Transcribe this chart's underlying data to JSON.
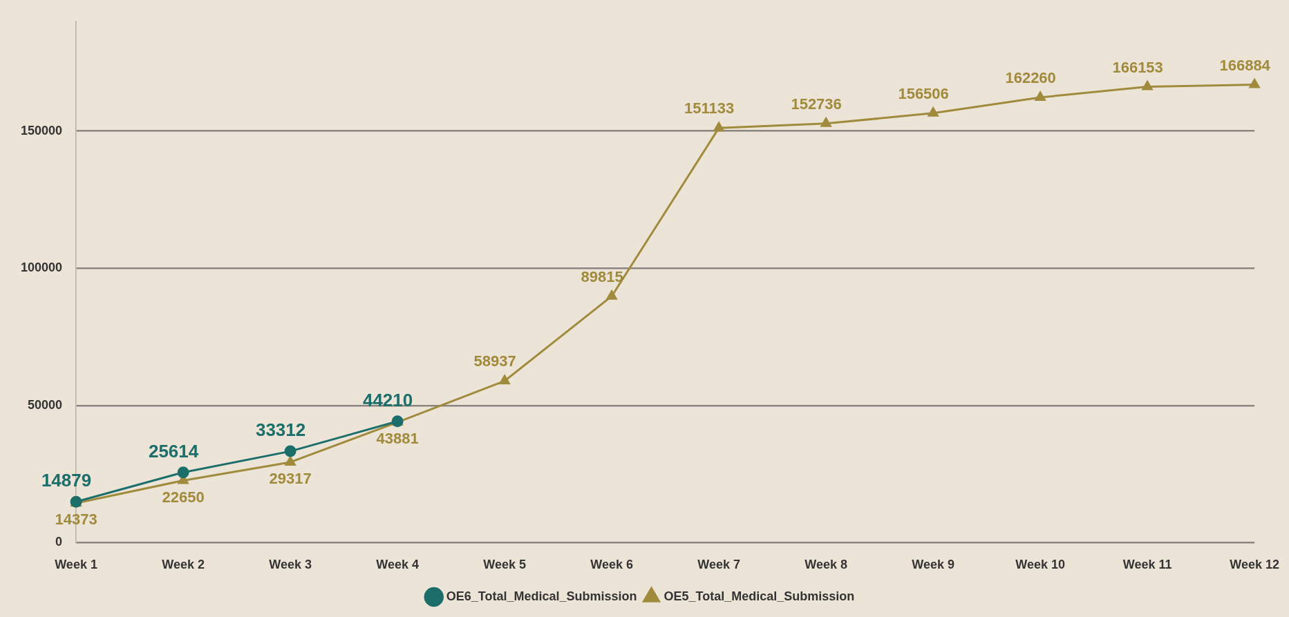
{
  "chart_data": {
    "type": "line",
    "categories": [
      "Week 1",
      "Week 2",
      "Week 3",
      "Week 4",
      "Week 5",
      "Week 6",
      "Week 7",
      "Week 8",
      "Week 9",
      "Week 10",
      "Week 11",
      "Week 12"
    ],
    "series": [
      {
        "name": "OE6_Total_Medical_Submission",
        "color": "#1b6e6a",
        "marker": "circle",
        "values": [
          14879,
          25614,
          33312,
          44210,
          null,
          null,
          null,
          null,
          null,
          null,
          null,
          null
        ]
      },
      {
        "name": "OE5_Total_Medical_Submission",
        "color": "#a08a3c",
        "marker": "triangle",
        "values": [
          14373,
          22650,
          29317,
          43881,
          58937,
          89815,
          151133,
          152736,
          156506,
          162260,
          166153,
          166884
        ]
      }
    ],
    "ylim": [
      0,
      190000
    ],
    "yticks": [
      0,
      50000,
      100000,
      150000
    ],
    "grid": "y",
    "legend": "bottom",
    "data_labels": true,
    "line_style": "solid"
  }
}
